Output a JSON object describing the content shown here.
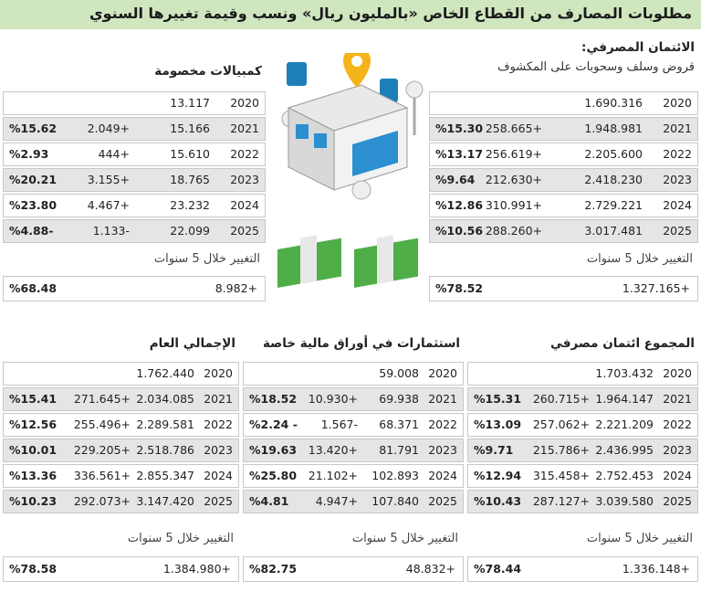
{
  "title": "مطلوبات المصارف من القطاع الخاص «بالمليون ريال» ونسب وقيمة تغييرها السنوي",
  "sections": [
    {
      "title": "الائتمان المصرفي:",
      "subtitle": "قروض وسلف وسحوبات على المكشوف",
      "rows": [
        [
          "2020",
          "1.690.316"
        ],
        [
          "2021",
          "1.948.981",
          "258.665+",
          "%15.30"
        ],
        [
          "2022",
          "2.205.600",
          "256.619+",
          "%13.17"
        ],
        [
          "2023",
          "2.418.230",
          "212.630+",
          "%9.64"
        ],
        [
          "2024",
          "2.729.221",
          "310.991+",
          "%12.86"
        ],
        [
          "2025",
          "3.017.481",
          "288.260+",
          "%10.56"
        ]
      ],
      "change_label": "التغيير خلال 5 سنوات",
      "change_total": "1.327.165+",
      "change_pct": "%78.52"
    },
    {
      "title": "كمبيالات مخصومة",
      "rows": [
        [
          "2020",
          "13.117"
        ],
        [
          "2021",
          "15.166",
          "2.049+",
          "%15.62"
        ],
        [
          "2022",
          "15.610",
          "444+",
          "%2.93"
        ],
        [
          "2023",
          "18.765",
          "3.155+",
          "%20.21"
        ],
        [
          "2024",
          "23.232",
          "4.467+",
          "%23.80"
        ],
        [
          "2025",
          "22.099",
          "1.133-",
          "%4.88-"
        ]
      ],
      "change_label": "التغيير خلال 5 سنوات",
      "change_total": "8.982+",
      "change_pct": "%68.48"
    },
    {
      "title": "المجموع ائتمان مصرفي",
      "rows": [
        [
          "2020",
          "1.703.432"
        ],
        [
          "2021",
          "1.964.147",
          "260.715+",
          "%15.31"
        ],
        [
          "2022",
          "2.221.209",
          "257.062+",
          "%13.09"
        ],
        [
          "2023",
          "2.436.995",
          "215.786+",
          "%9.71"
        ],
        [
          "2024",
          "2.752.453",
          "315.458+",
          "%12.94"
        ],
        [
          "2025",
          "3.039.580",
          "287.127+",
          "%10.43"
        ]
      ],
      "change_label": "التغيير خلال 5 سنوات",
      "change_total": "1.336.148+",
      "change_pct": "%78.44"
    },
    {
      "title": "استثمارات في أوراق مالية خاصة",
      "rows": [
        [
          "2020",
          "59.008"
        ],
        [
          "2021",
          "69.938",
          "10.930+",
          "%18.52"
        ],
        [
          "2022",
          "68.371",
          "1.567-",
          "%2.24 -"
        ],
        [
          "2023",
          "81.791",
          "13.420+",
          "%19.63"
        ],
        [
          "2024",
          "102.893",
          "21.102+",
          "%25.80"
        ],
        [
          "2025",
          "107.840",
          "4.947+",
          "%4.81"
        ]
      ],
      "change_label": "التغيير خلال 5 سنوات",
      "change_total": "48.832+",
      "change_pct": "%82.75"
    },
    {
      "title": "الإجمالي العام",
      "rows": [
        [
          "2020",
          "1.762.440"
        ],
        [
          "2021",
          "2.034.085",
          "271.645+",
          "%15.41"
        ],
        [
          "2022",
          "2.289.581",
          "255.496+",
          "%12.56"
        ],
        [
          "2023",
          "2.518.786",
          "229.205+",
          "%10.01"
        ],
        [
          "2024",
          "2.855.347",
          "336.561+",
          "%13.36"
        ],
        [
          "2025",
          "3.147.420",
          "292.073+",
          "%10.23"
        ]
      ],
      "change_label": "التغيير خلال 5 سنوات",
      "change_total": "1.384.980+",
      "change_pct": "%78.58"
    }
  ]
}
